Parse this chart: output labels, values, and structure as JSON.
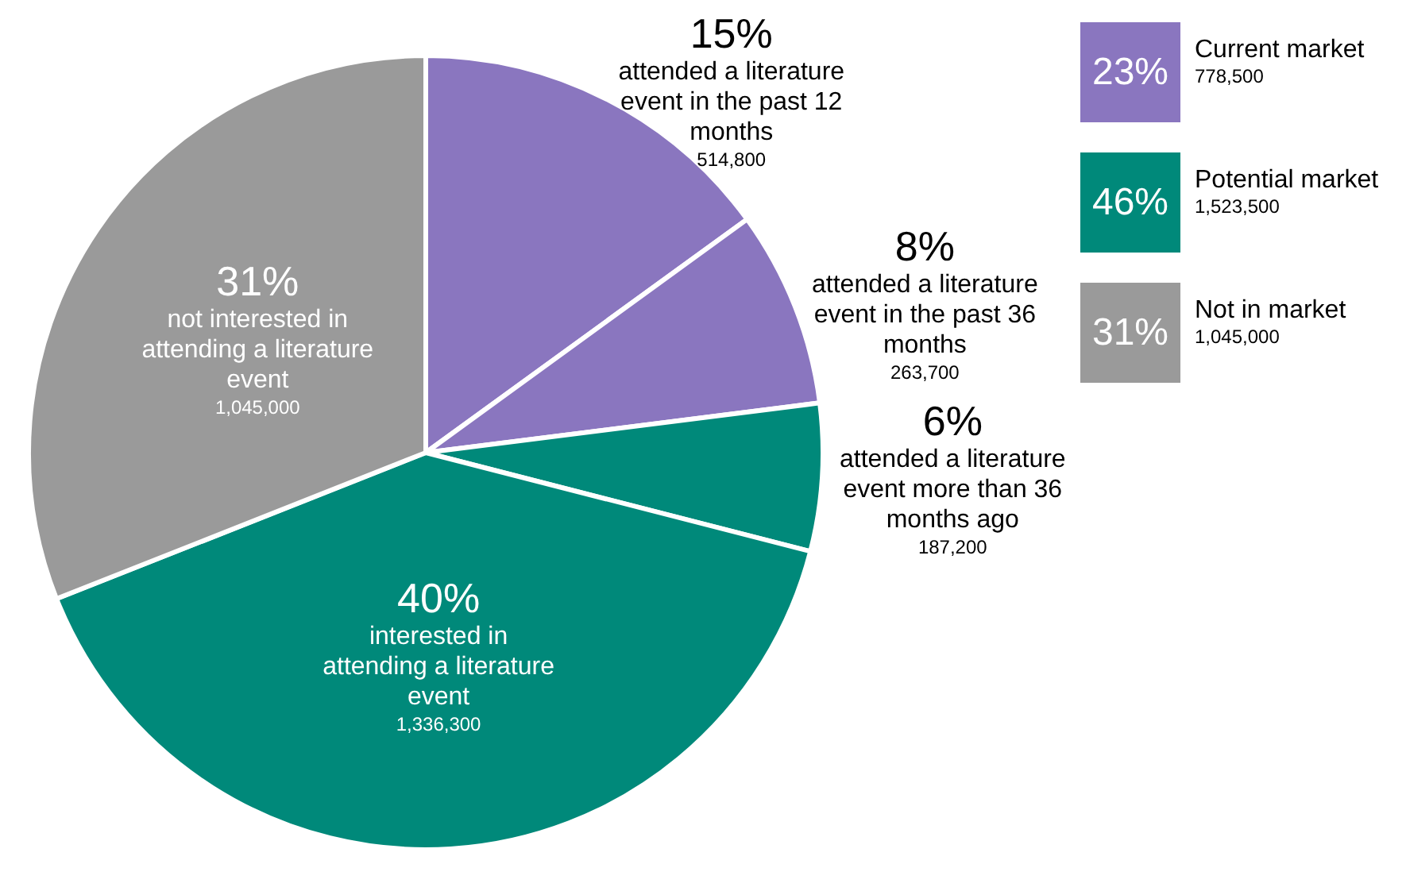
{
  "chart_data": [
    {
      "type": "pie",
      "categories": [
        "attended a literature event in the past 12 months",
        "attended a literature event in the past 36 months",
        "attended a literature event more than 36 months ago",
        "interested in attending a literature event",
        "not interested in attending a literature event"
      ],
      "values": [
        15,
        8,
        6,
        40,
        31
      ],
      "value_labels": [
        "15%",
        "8%",
        "6%",
        "40%",
        "31%"
      ],
      "annotations": [
        "514,800",
        "263,700",
        "187,200",
        "1,336,300",
        "1,045,000"
      ],
      "colors": [
        "#8a76bf",
        "#8a76bf",
        "#00897a",
        "#00897a",
        "#9a9a9a"
      ]
    },
    {
      "type": "other",
      "categories": [
        "Current market",
        "Potential market",
        "Not in market"
      ],
      "value_labels": [
        "23%",
        "46%",
        "31%"
      ],
      "annotations": [
        "778,500",
        "1,523,500",
        "1,045,000"
      ],
      "colors": [
        "#8a76bf",
        "#00897a",
        "#9a9a9a"
      ]
    }
  ]
}
